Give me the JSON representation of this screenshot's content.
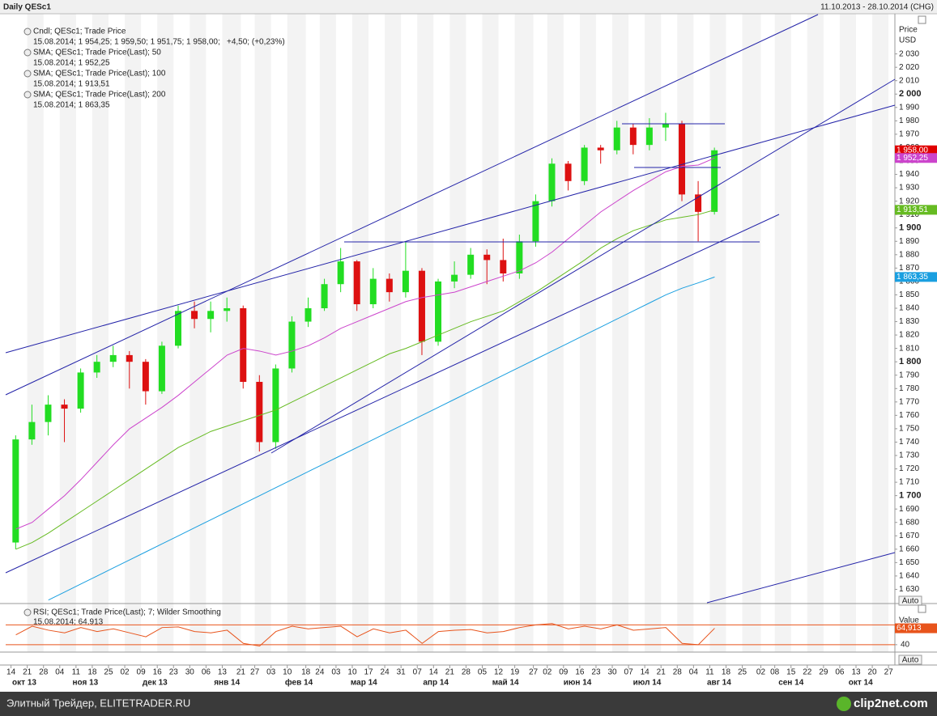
{
  "chart_data": [
    {
      "type": "candlestick",
      "title": "Daily QESc1",
      "subtitle": "11.10.2013 - 28.10.2014 (CHG)",
      "y_axis_label": "Price",
      "y_axis_unit": "USD",
      "auto_label": "Auto",
      "xlim": [
        "2013-10-11",
        "2014-10-28"
      ],
      "ylim": [
        1620,
        2060
      ],
      "yticks": [
        {
          "value": 1630,
          "label": "1 630"
        },
        {
          "value": 1640,
          "label": "1 640"
        },
        {
          "value": 1650,
          "label": "1 650"
        },
        {
          "value": 1660,
          "label": "1 660"
        },
        {
          "value": 1670,
          "label": "1 670"
        },
        {
          "value": 1680,
          "label": "1 680"
        },
        {
          "value": 1690,
          "label": "1 690"
        },
        {
          "value": 1700,
          "label": "1 700"
        },
        {
          "value": 1710,
          "label": "1 710"
        },
        {
          "value": 1720,
          "label": "1 720"
        },
        {
          "value": 1730,
          "label": "1 730"
        },
        {
          "value": 1740,
          "label": "1 740"
        },
        {
          "value": 1750,
          "label": "1 750"
        },
        {
          "value": 1760,
          "label": "1 760"
        },
        {
          "value": 1770,
          "label": "1 770"
        },
        {
          "value": 1780,
          "label": "1 780"
        },
        {
          "value": 1790,
          "label": "1 790"
        },
        {
          "value": 1800,
          "label": "1 800"
        },
        {
          "value": 1810,
          "label": "1 810"
        },
        {
          "value": 1820,
          "label": "1 820"
        },
        {
          "value": 1830,
          "label": "1 830"
        },
        {
          "value": 1840,
          "label": "1 840"
        },
        {
          "value": 1850,
          "label": "1 850"
        },
        {
          "value": 1860,
          "label": "1 860"
        },
        {
          "value": 1870,
          "label": "1 870"
        },
        {
          "value": 1880,
          "label": "1 880"
        },
        {
          "value": 1890,
          "label": "1 890"
        },
        {
          "value": 1900,
          "label": "1 900"
        },
        {
          "value": 1910,
          "label": "1 910"
        },
        {
          "value": 1920,
          "label": "1 920"
        },
        {
          "value": 1930,
          "label": "1 930"
        },
        {
          "value": 1940,
          "label": "1 940"
        },
        {
          "value": 1950,
          "label": "1 950"
        },
        {
          "value": 1960,
          "label": "1 960"
        },
        {
          "value": 1970,
          "label": "1 970"
        },
        {
          "value": 1980,
          "label": "1 980"
        },
        {
          "value": 1990,
          "label": "1 990"
        },
        {
          "value": 2000,
          "label": "2 000"
        },
        {
          "value": 2010,
          "label": "2 010"
        },
        {
          "value": 2020,
          "label": "2 020"
        },
        {
          "value": 2030,
          "label": "2 030"
        }
      ],
      "xticks": [
        {
          "value": "2013-10-14",
          "label": "14"
        },
        {
          "value": "2013-10-21",
          "label": "21"
        },
        {
          "value": "2013-10-28",
          "label": "28"
        },
        {
          "value": "2013-11-04",
          "label": "04"
        },
        {
          "value": "2013-11-11",
          "label": "11"
        },
        {
          "value": "2013-11-18",
          "label": "18"
        },
        {
          "value": "2013-11-25",
          "label": "25"
        },
        {
          "value": "2013-12-02",
          "label": "02"
        },
        {
          "value": "2013-12-09",
          "label": "09"
        },
        {
          "value": "2013-12-16",
          "label": "16"
        },
        {
          "value": "2013-12-23",
          "label": "23"
        },
        {
          "value": "2013-12-30",
          "label": "30"
        },
        {
          "value": "2014-01-06",
          "label": "06"
        },
        {
          "value": "2014-01-13",
          "label": "13"
        },
        {
          "value": "2014-01-21",
          "label": "21"
        },
        {
          "value": "2014-01-27",
          "label": "27"
        },
        {
          "value": "2014-02-03",
          "label": "03"
        },
        {
          "value": "2014-02-10",
          "label": "10"
        },
        {
          "value": "2014-02-18",
          "label": "18"
        },
        {
          "value": "2014-02-24",
          "label": "24"
        },
        {
          "value": "2014-03-03",
          "label": "03"
        },
        {
          "value": "2014-03-10",
          "label": "10"
        },
        {
          "value": "2014-03-17",
          "label": "17"
        },
        {
          "value": "2014-03-24",
          "label": "24"
        },
        {
          "value": "2014-03-31",
          "label": "31"
        },
        {
          "value": "2014-04-07",
          "label": "07"
        },
        {
          "value": "2014-04-14",
          "label": "14"
        },
        {
          "value": "2014-04-21",
          "label": "21"
        },
        {
          "value": "2014-04-28",
          "label": "28"
        },
        {
          "value": "2014-05-05",
          "label": "05"
        },
        {
          "value": "2014-05-12",
          "label": "12"
        },
        {
          "value": "2014-05-19",
          "label": "19"
        },
        {
          "value": "2014-05-27",
          "label": "27"
        },
        {
          "value": "2014-06-02",
          "label": "02"
        },
        {
          "value": "2014-06-09",
          "label": "09"
        },
        {
          "value": "2014-06-16",
          "label": "16"
        },
        {
          "value": "2014-06-23",
          "label": "23"
        },
        {
          "value": "2014-06-30",
          "label": "30"
        },
        {
          "value": "2014-07-07",
          "label": "07"
        },
        {
          "value": "2014-07-14",
          "label": "14"
        },
        {
          "value": "2014-07-21",
          "label": "21"
        },
        {
          "value": "2014-07-28",
          "label": "28"
        },
        {
          "value": "2014-08-04",
          "label": "04"
        },
        {
          "value": "2014-08-11",
          "label": "11"
        },
        {
          "value": "2014-08-18",
          "label": "18"
        },
        {
          "value": "2014-08-25",
          "label": "25"
        },
        {
          "value": "2014-09-02",
          "label": "02"
        },
        {
          "value": "2014-09-08",
          "label": "08"
        },
        {
          "value": "2014-09-15",
          "label": "15"
        },
        {
          "value": "2014-09-22",
          "label": "22"
        },
        {
          "value": "2014-09-29",
          "label": "29"
        },
        {
          "value": "2014-10-06",
          "label": "06"
        },
        {
          "value": "2014-10-13",
          "label": "13"
        },
        {
          "value": "2014-10-20",
          "label": "20"
        },
        {
          "value": "2014-10-27",
          "label": "27"
        }
      ],
      "month_labels": [
        {
          "value": "2013-10",
          "label": "окт 13"
        },
        {
          "value": "2013-11",
          "label": "ноя 13"
        },
        {
          "value": "2013-12",
          "label": "дек 13"
        },
        {
          "value": "2014-01",
          "label": "янв 14"
        },
        {
          "value": "2014-02",
          "label": "фев 14"
        },
        {
          "value": "2014-03",
          "label": "мар 14"
        },
        {
          "value": "2014-04",
          "label": "апр 14"
        },
        {
          "value": "2014-05",
          "label": "май 14"
        },
        {
          "value": "2014-06",
          "label": "июн 14"
        },
        {
          "value": "2014-07",
          "label": "июл 14"
        },
        {
          "value": "2014-08",
          "label": "авг 14"
        },
        {
          "value": "2014-09",
          "label": "сен 14"
        },
        {
          "value": "2014-10",
          "label": "окт 14"
        }
      ],
      "x": [
        "2013-10-14",
        "2013-10-21",
        "2013-10-28",
        "2013-11-04",
        "2013-11-11",
        "2013-11-18",
        "2013-11-25",
        "2013-12-02",
        "2013-12-09",
        "2013-12-16",
        "2013-12-23",
        "2013-12-30",
        "2014-01-06",
        "2014-01-13",
        "2014-01-20",
        "2014-01-27",
        "2014-02-03",
        "2014-02-10",
        "2014-02-17",
        "2014-02-24",
        "2014-03-03",
        "2014-03-10",
        "2014-03-17",
        "2014-03-24",
        "2014-03-31",
        "2014-04-07",
        "2014-04-14",
        "2014-04-21",
        "2014-04-28",
        "2014-05-05",
        "2014-05-12",
        "2014-05-19",
        "2014-05-26",
        "2014-06-02",
        "2014-06-09",
        "2014-06-16",
        "2014-06-23",
        "2014-06-30",
        "2014-07-07",
        "2014-07-14",
        "2014-07-21",
        "2014-07-28",
        "2014-08-04",
        "2014-08-11"
      ],
      "series": [
        {
          "name": "Cndl; QESc1; Trade Price",
          "info": "15.08.2014; 1 954,25; 1 959,50; 1 951,75; 1 958,00;",
          "change": "+4,50; (+0,23%)",
          "up_color": "#22dd22",
          "down_color": "#dd1111",
          "value_label": "1 958,00",
          "open": [
            1665,
            1742,
            1755,
            1768,
            1765,
            1792,
            1800,
            1805,
            1800,
            1778,
            1812,
            1838,
            1832,
            1838,
            1840,
            1785,
            1740,
            1795,
            1830,
            1840,
            1858,
            1875,
            1843,
            1862,
            1852,
            1868,
            1815,
            1860,
            1865,
            1880,
            1876,
            1866,
            1890,
            1920,
            1948,
            1935,
            1960,
            1958,
            1975,
            1962,
            1975,
            1978,
            1925,
            1912
          ],
          "high": [
            1745,
            1768,
            1775,
            1772,
            1795,
            1805,
            1812,
            1808,
            1802,
            1815,
            1842,
            1845,
            1845,
            1848,
            1842,
            1790,
            1798,
            1834,
            1848,
            1862,
            1885,
            1876,
            1870,
            1866,
            1890,
            1870,
            1862,
            1875,
            1885,
            1884,
            1892,
            1895,
            1925,
            1952,
            1950,
            1962,
            1962,
            1980,
            1978,
            1982,
            1986,
            1980,
            1935,
            1960
          ],
          "low": [
            1660,
            1738,
            1745,
            1740,
            1762,
            1788,
            1796,
            1780,
            1768,
            1776,
            1810,
            1825,
            1822,
            1830,
            1780,
            1733,
            1735,
            1792,
            1826,
            1838,
            1852,
            1838,
            1840,
            1845,
            1848,
            1805,
            1812,
            1855,
            1862,
            1858,
            1860,
            1862,
            1886,
            1916,
            1928,
            1932,
            1948,
            1955,
            1955,
            1958,
            1965,
            1920,
            1890,
            1910
          ],
          "close": [
            1742,
            1755,
            1768,
            1765,
            1792,
            1800,
            1805,
            1800,
            1778,
            1812,
            1838,
            1832,
            1838,
            1840,
            1785,
            1740,
            1795,
            1830,
            1840,
            1858,
            1875,
            1843,
            1862,
            1852,
            1868,
            1815,
            1860,
            1865,
            1880,
            1876,
            1866,
            1890,
            1920,
            1948,
            1935,
            1960,
            1958,
            1975,
            1962,
            1975,
            1978,
            1925,
            1912,
            1958
          ]
        }
      ],
      "lines": [
        {
          "name": "SMA; QESc1; Trade Price(Last);  50",
          "info": "15.08.2014; 1 952,25",
          "color": "#cc44cc",
          "value_label": "1 952,25",
          "values": [
            1675,
            1680,
            1690,
            1700,
            1712,
            1725,
            1738,
            1750,
            1758,
            1766,
            1775,
            1785,
            1795,
            1805,
            1810,
            1808,
            1805,
            1808,
            1812,
            1818,
            1825,
            1830,
            1835,
            1840,
            1845,
            1848,
            1850,
            1852,
            1856,
            1860,
            1864,
            1868,
            1874,
            1882,
            1892,
            1902,
            1912,
            1920,
            1928,
            1935,
            1942,
            1946,
            1947,
            1952.25
          ]
        },
        {
          "name": "SMA; QESc1; Trade Price(Last);  100",
          "info": "15.08.2014; 1 913,51",
          "color": "#66bb22",
          "value_label": "1 913,51",
          "values": [
            1660,
            1665,
            1672,
            1680,
            1688,
            1696,
            1704,
            1712,
            1720,
            1728,
            1736,
            1742,
            1748,
            1752,
            1756,
            1760,
            1764,
            1770,
            1776,
            1782,
            1788,
            1794,
            1800,
            1806,
            1810,
            1815,
            1820,
            1825,
            1830,
            1834,
            1838,
            1845,
            1852,
            1860,
            1868,
            1876,
            1885,
            1892,
            1898,
            1902,
            1906,
            1908,
            1910,
            1913.51
          ]
        },
        {
          "name": "SMA; QESc1; Trade Price(Last);  200",
          "info": "15.08.2014; 1 863,35",
          "color": "#1a9fe0",
          "value_label": "1 863,35",
          "values": [
            null,
            null,
            1622,
            1628,
            1634,
            1640,
            1646,
            1652,
            1658,
            1664,
            1670,
            1676,
            1682,
            1688,
            1694,
            1700,
            1706,
            1712,
            1718,
            1724,
            1730,
            1736,
            1742,
            1748,
            1754,
            1760,
            1766,
            1772,
            1778,
            1784,
            1790,
            1796,
            1802,
            1808,
            1814,
            1820,
            1826,
            1832,
            1838,
            1844,
            1850,
            1855,
            1859,
            1863.35
          ]
        }
      ]
    },
    {
      "type": "line",
      "y_axis_label": "Value",
      "auto_label": "Auto",
      "xlim": [
        "2013-10-11",
        "2014-10-28"
      ],
      "ylim": [
        30,
        100
      ],
      "yticks": [
        40
      ],
      "levels": [
        40,
        70
      ],
      "x": [
        "2013-10-14",
        "2013-10-21",
        "2013-10-28",
        "2013-11-04",
        "2013-11-11",
        "2013-11-18",
        "2013-11-25",
        "2013-12-02",
        "2013-12-09",
        "2013-12-16",
        "2013-12-23",
        "2013-12-30",
        "2014-01-06",
        "2014-01-13",
        "2014-01-20",
        "2014-01-27",
        "2014-02-03",
        "2014-02-10",
        "2014-02-17",
        "2014-02-24",
        "2014-03-03",
        "2014-03-10",
        "2014-03-17",
        "2014-03-24",
        "2014-03-31",
        "2014-04-07",
        "2014-04-14",
        "2014-04-21",
        "2014-04-28",
        "2014-05-05",
        "2014-05-12",
        "2014-05-19",
        "2014-05-26",
        "2014-06-02",
        "2014-06-09",
        "2014-06-16",
        "2014-06-23",
        "2014-06-30",
        "2014-07-07",
        "2014-07-14",
        "2014-07-21",
        "2014-07-28",
        "2014-08-04",
        "2014-08-11"
      ],
      "series": [
        {
          "name": "RSI; QESc1; Trade Price(Last);  7; Wilder Smoothing",
          "info": "15.08.2014; 64,913",
          "color": "#e8541c",
          "value_label": "64,913",
          "values": [
            55,
            68,
            62,
            58,
            66,
            60,
            64,
            58,
            52,
            66,
            67,
            60,
            58,
            62,
            42,
            38,
            60,
            68,
            64,
            66,
            68,
            52,
            64,
            58,
            62,
            42,
            60,
            62,
            63,
            58,
            60,
            66,
            70,
            72,
            64,
            68,
            64,
            70,
            62,
            64,
            66,
            42,
            40,
            64.913
          ]
        }
      ]
    }
  ],
  "footer": {
    "source": "Элитный Трейдер, ELITETRADER.RU",
    "brand": "clip2net.com"
  }
}
